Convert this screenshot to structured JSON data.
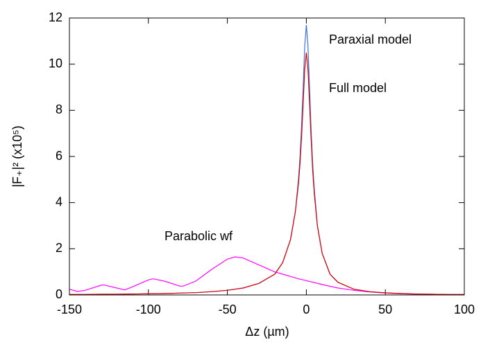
{
  "chart_data": {
    "type": "line",
    "xlabel": "Δz (µm)",
    "ylabel": "|F₊|² (x10⁵)",
    "xlim": [
      -150,
      100
    ],
    "xticks": [
      -150,
      -100,
      -50,
      0,
      50,
      100
    ],
    "ylim": [
      0,
      12
    ],
    "yticks": [
      0,
      2,
      4,
      6,
      8,
      10,
      12
    ],
    "annotations": [
      "Paraxial model",
      "Full model",
      "Parabolic wf"
    ],
    "series": [
      {
        "name": "Parabolic wf",
        "color": "#ff00ff",
        "x": [
          -150,
          -145,
          -140,
          -130,
          -128,
          -120,
          -115,
          -110,
          -100,
          -97,
          -90,
          -80,
          -78,
          -70,
          -60,
          -50,
          -45,
          -40,
          -30,
          -20,
          -15,
          -10,
          -5,
          0,
          10,
          20,
          30,
          40,
          50,
          60,
          70,
          80,
          90,
          100
        ],
        "values": [
          0.25,
          0.15,
          0.2,
          0.42,
          0.43,
          0.3,
          0.22,
          0.35,
          0.65,
          0.7,
          0.6,
          0.38,
          0.38,
          0.6,
          1.1,
          1.55,
          1.65,
          1.6,
          1.3,
          1.0,
          0.9,
          0.8,
          0.7,
          0.62,
          0.45,
          0.3,
          0.2,
          0.13,
          0.08,
          0.05,
          0.03,
          0.02,
          0.01,
          0.01
        ]
      },
      {
        "name": "Paraxial model",
        "color": "#3a6fe0",
        "x": [
          -150,
          -140,
          -130,
          -120,
          -110,
          -100,
          -90,
          -80,
          -70,
          -60,
          -50,
          -40,
          -30,
          -20,
          -15,
          -10,
          -7,
          -5,
          -4,
          -3,
          -2,
          -1,
          0,
          1,
          2,
          3,
          4,
          5,
          7,
          10,
          15,
          20,
          30,
          40,
          50,
          60,
          70,
          80,
          90,
          100
        ],
        "values": [
          0.02,
          0.02,
          0.03,
          0.03,
          0.04,
          0.05,
          0.06,
          0.08,
          0.1,
          0.14,
          0.2,
          0.3,
          0.5,
          0.9,
          1.4,
          2.4,
          3.6,
          5.0,
          6.0,
          7.4,
          9.0,
          10.8,
          11.7,
          10.8,
          9.0,
          7.2,
          5.7,
          4.6,
          3.0,
          1.8,
          0.9,
          0.55,
          0.25,
          0.14,
          0.09,
          0.06,
          0.04,
          0.03,
          0.02,
          0.02
        ]
      },
      {
        "name": "Full model",
        "color": "#dd0000",
        "x": [
          -150,
          -140,
          -130,
          -120,
          -110,
          -100,
          -90,
          -80,
          -70,
          -60,
          -50,
          -40,
          -30,
          -20,
          -15,
          -10,
          -7,
          -5,
          -4,
          -3,
          -2,
          -1,
          0,
          1,
          2,
          3,
          4,
          5,
          7,
          10,
          15,
          20,
          30,
          40,
          50,
          60,
          70,
          80,
          90,
          100
        ],
        "values": [
          0.02,
          0.02,
          0.03,
          0.03,
          0.04,
          0.05,
          0.06,
          0.08,
          0.1,
          0.14,
          0.2,
          0.3,
          0.5,
          0.9,
          1.4,
          2.4,
          3.6,
          4.8,
          5.7,
          6.9,
          8.3,
          9.8,
          10.5,
          9.8,
          8.3,
          6.8,
          5.4,
          4.4,
          3.0,
          1.8,
          0.9,
          0.55,
          0.25,
          0.14,
          0.09,
          0.06,
          0.04,
          0.03,
          0.02,
          0.02
        ]
      }
    ]
  }
}
